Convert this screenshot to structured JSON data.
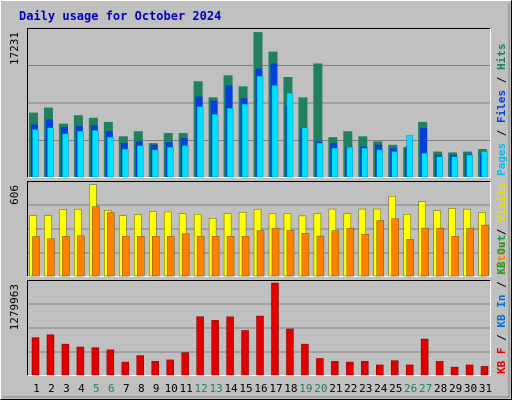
{
  "chart_data": {
    "type": "bar",
    "title": "Daily usage for October 2024",
    "categories": [
      "1",
      "2",
      "3",
      "4",
      "5",
      "6",
      "7",
      "8",
      "9",
      "10",
      "11",
      "12",
      "13",
      "14",
      "15",
      "16",
      "17",
      "18",
      "19",
      "20",
      "21",
      "22",
      "23",
      "24",
      "25",
      "26",
      "27",
      "28",
      "29",
      "30",
      "31"
    ],
    "weekend_days": [
      "5",
      "6",
      "12",
      "13",
      "19",
      "20",
      "26",
      "27"
    ],
    "panels": [
      {
        "id": "hits-files-pages",
        "max_label": "17231",
        "ymax": 17231,
        "right_labels": [
          {
            "text": "Pages",
            "color": "#00c0f0"
          },
          {
            "text": " / ",
            "color": "#000000"
          },
          {
            "text": "Files",
            "color": "#0040e0"
          },
          {
            "text": " / ",
            "color": "#000000"
          },
          {
            "text": "Hits",
            "color": "#208060"
          }
        ],
        "series": [
          {
            "name": "Hits",
            "color": "#208060",
            "values": [
              7600,
              8200,
              6300,
              7300,
              7000,
              6500,
              4800,
              5400,
              4000,
              5200,
              5200,
              11300,
              9400,
              12000,
              10700,
              17100,
              14800,
              11800,
              9400,
              13400,
              4700,
              5400,
              4800,
              4200,
              3800,
              3500,
              6500,
              3000,
              2900,
              3000,
              3300
            ]
          },
          {
            "name": "Files",
            "color": "#0040e0",
            "values": [
              6200,
              6800,
              5900,
              6000,
              6100,
              5400,
              4000,
              4200,
              3800,
              4100,
              4600,
              9500,
              9000,
              10800,
              9300,
              12800,
              13400,
              8400,
              5700,
              4200,
              4000,
              3500,
              3600,
              3800,
              3400,
              3600,
              5800,
              2600,
              2600,
              2700,
              2800
            ]
          },
          {
            "name": "Pages",
            "color": "#00e0ff",
            "values": [
              5600,
              5800,
              5100,
              5400,
              5500,
              4700,
              3300,
              3700,
              3200,
              3500,
              3700,
              8300,
              7400,
              8100,
              8600,
              11900,
              10800,
              9900,
              5800,
              4000,
              3400,
              3500,
              3400,
              3200,
              3000,
              4900,
              2800,
              2400,
              2400,
              2600,
              3000
            ]
          }
        ]
      },
      {
        "id": "visits-sites",
        "max_label": "606",
        "ymax": 606,
        "right_labels": [
          {
            "text": "Sites",
            "color": "#ff8000"
          },
          {
            "text": " / ",
            "color": "#000000"
          },
          {
            "text": "Visits",
            "color": "#e8e000"
          }
        ],
        "series": [
          {
            "name": "Visits",
            "color": "#ffff00",
            "values": [
              397,
              397,
              437,
              440,
              601,
              432,
              397,
              405,
              424,
              422,
              410,
              407,
              380,
              410,
              420,
              440,
              412,
              412,
              396,
              412,
              441,
              410,
              441,
              441,
              525,
              406,
              491,
              430,
              445,
              440,
              419
            ]
          },
          {
            "name": "Sites",
            "color": "#ff8000",
            "values": [
              260,
              245,
              262,
              265,
              457,
              418,
              262,
              262,
              262,
              262,
              278,
              262,
              262,
              262,
              262,
              299,
              315,
              300,
              281,
              263,
              299,
              315,
              275,
              365,
              378,
              241,
              315,
              315,
              262,
              315,
              335
            ]
          }
        ]
      },
      {
        "id": "kb",
        "max_label": "1279963",
        "ymax": 1279963,
        "right_labels": [
          {
            "text": "KB F",
            "color": "#e00000"
          },
          {
            "text": " / ",
            "color": "#000000"
          },
          {
            "text": "KB In",
            "color": "#0070e0"
          },
          {
            "text": " / ",
            "color": "#000000"
          },
          {
            "text": "KB Out",
            "color": "#10a040"
          }
        ],
        "series": [
          {
            "name": "KB F",
            "color": "#e00000",
            "values": [
              520000,
              560000,
              430000,
              390000,
              380000,
              350000,
              180000,
              270000,
              190000,
              210000,
              310000,
              810000,
              760000,
              810000,
              620000,
              820000,
              1279963,
              640000,
              430000,
              230000,
              190000,
              180000,
              190000,
              140000,
              200000,
              140000,
              500000,
              190000,
              110000,
              140000,
              120000
            ]
          }
        ]
      }
    ]
  }
}
